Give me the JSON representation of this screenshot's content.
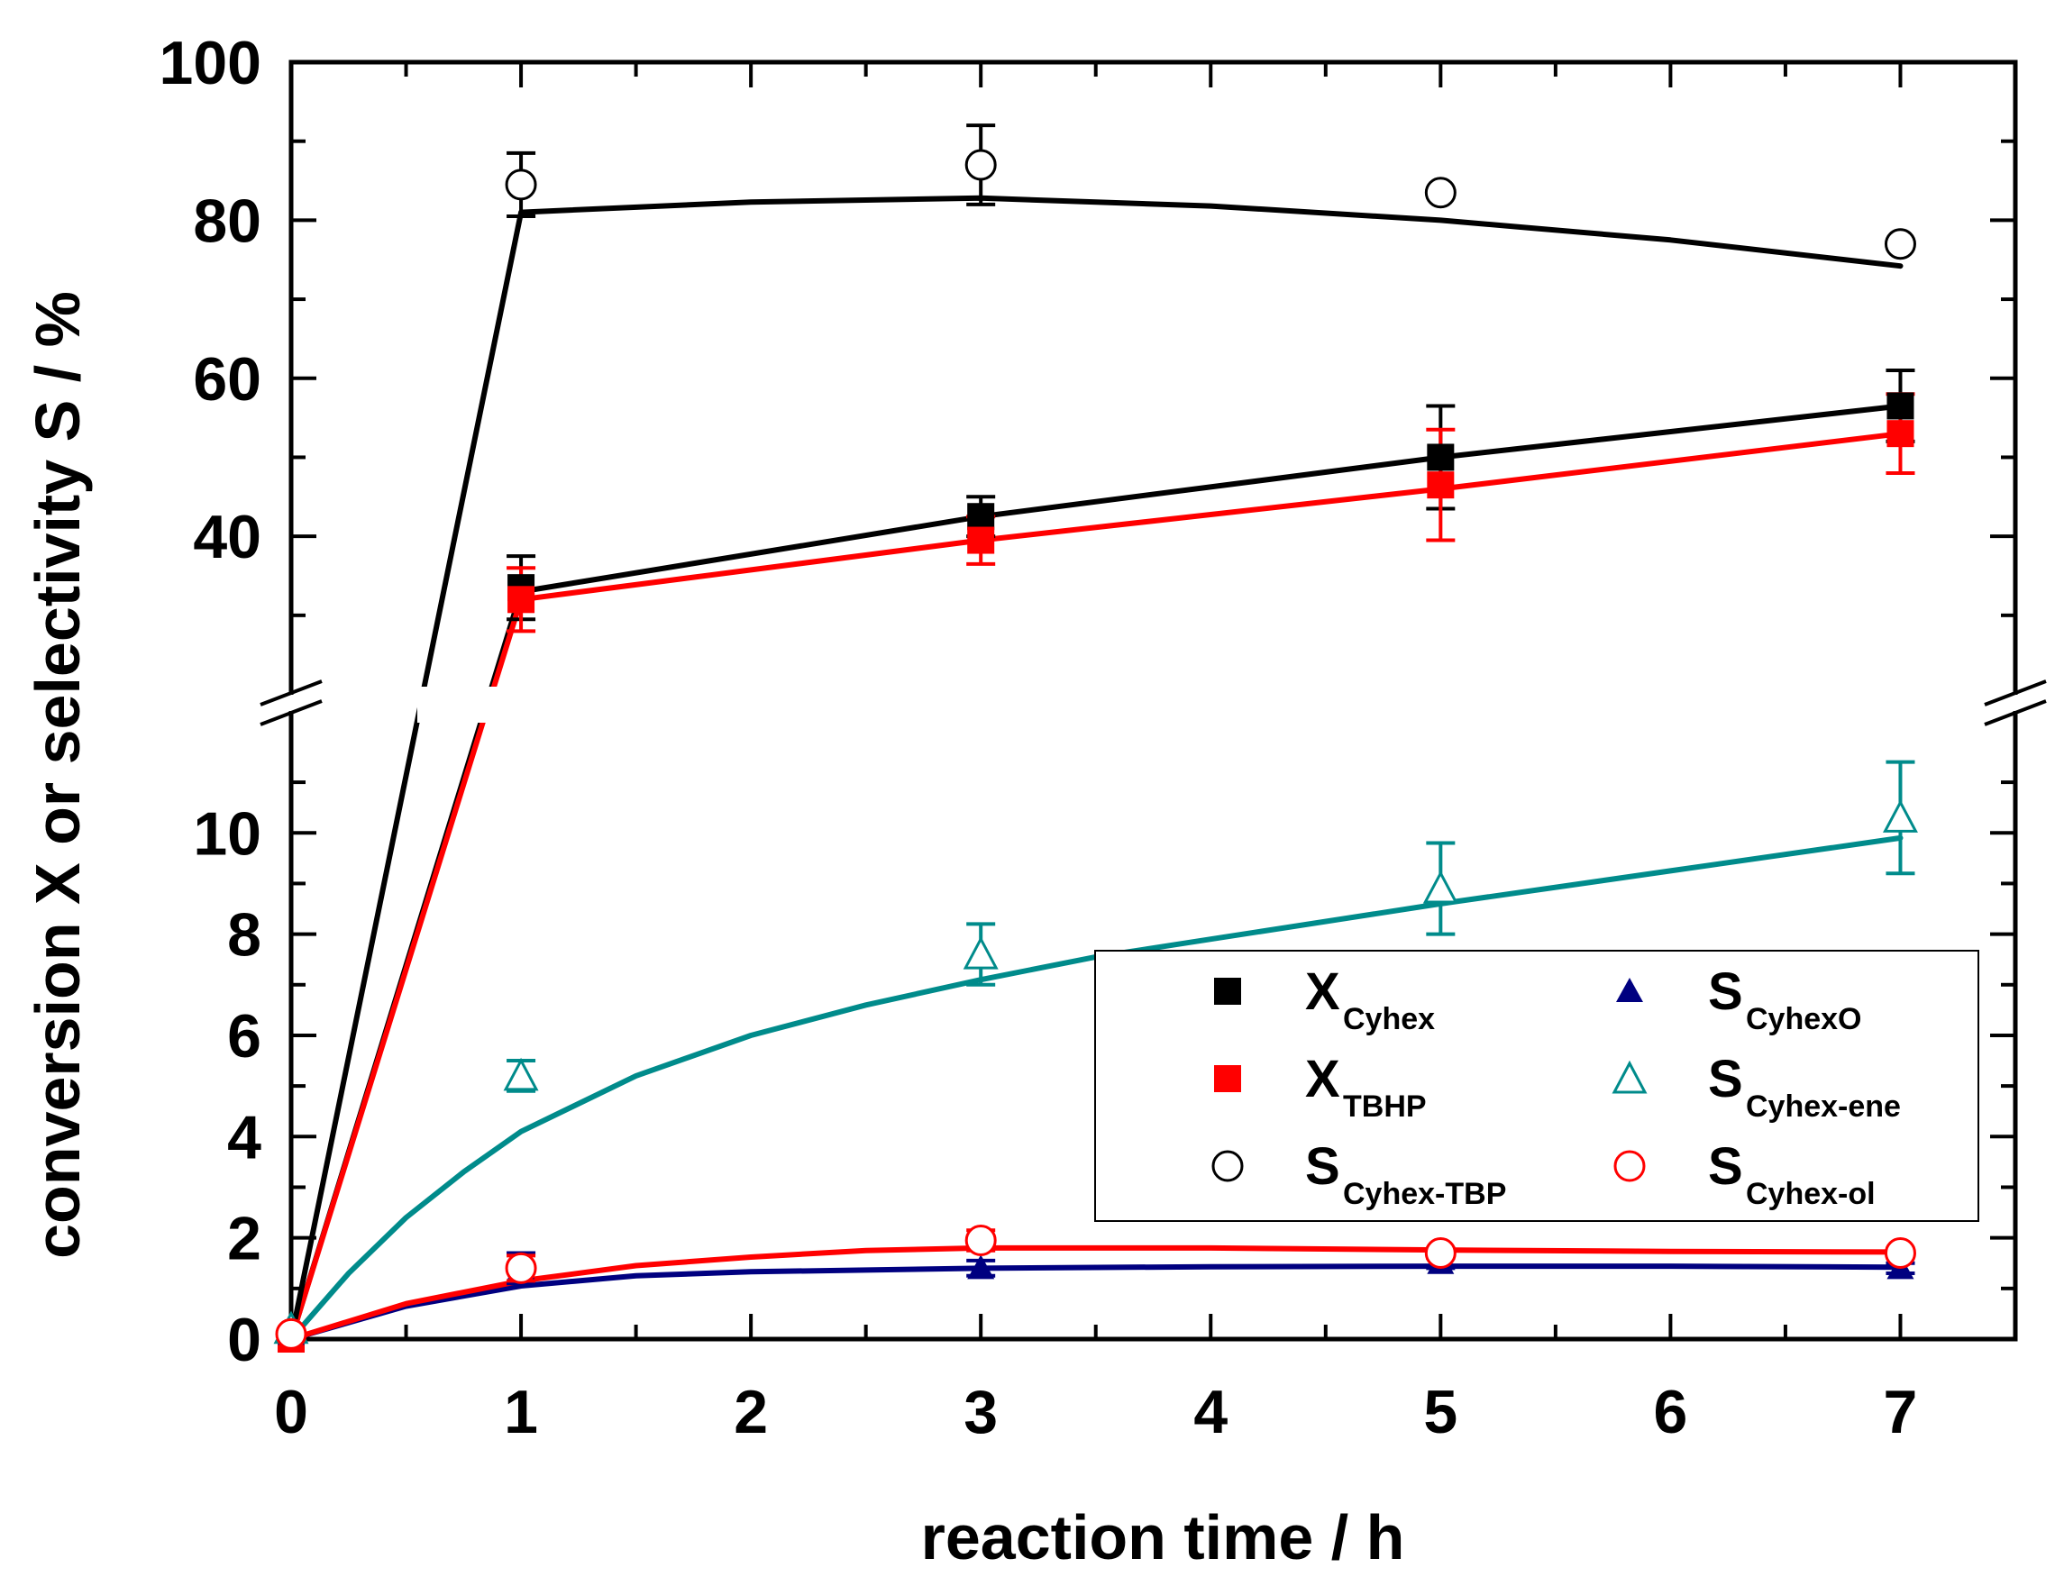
{
  "chart_data": {
    "type": "scatter",
    "title": "",
    "xlabel": "reaction time / h",
    "ylabel": "conversion X or selectivity S / %",
    "xlim": [
      0,
      7.5
    ],
    "x_ticks": [
      0,
      1,
      2,
      3,
      4,
      5,
      6,
      7
    ],
    "x_tick_labels": [
      "0",
      "1",
      "2",
      "3",
      "4",
      "5",
      "6",
      "7"
    ],
    "axis_break": {
      "lower_range": [
        0,
        11.5
      ],
      "upper_range": [
        22,
        100
      ],
      "lower_tick_labels": [
        {
          "value": 0,
          "text": "0"
        },
        {
          "value": 2,
          "text": "2"
        },
        {
          "value": 4,
          "text": "4"
        },
        {
          "value": 6,
          "text": "6"
        },
        {
          "value": 8,
          "text": "8"
        },
        {
          "value": 10,
          "text": "10"
        }
      ],
      "upper_tick_labels": [
        {
          "value": 40,
          "text": "40"
        },
        {
          "value": 60,
          "text": "60"
        },
        {
          "value": 80,
          "text": "80"
        },
        {
          "value": 100,
          "text": "100"
        }
      ]
    },
    "legend_position": "inside-right-middle",
    "series": [
      {
        "id": "x-cyhex",
        "name_main": "X",
        "name_sub": "Cyhex",
        "marker": "square-filled",
        "color": "#000000",
        "points": [
          {
            "x": 0,
            "y": 0,
            "err": 0
          },
          {
            "x": 1,
            "y": 33.5,
            "err": 4
          },
          {
            "x": 3,
            "y": 42.5,
            "err": 2.5
          },
          {
            "x": 5,
            "y": 50,
            "err": 6.5
          },
          {
            "x": 7,
            "y": 56.5,
            "err": 4.5
          }
        ],
        "fit": [
          [
            0,
            0
          ],
          [
            1,
            33
          ],
          [
            3,
            42.5
          ],
          [
            5,
            50
          ],
          [
            7,
            56.5
          ]
        ]
      },
      {
        "id": "x-tbhp",
        "name_main": "X",
        "name_sub": "TBHP",
        "marker": "square-filled",
        "color": "#ff0000",
        "points": [
          {
            "x": 0,
            "y": 0,
            "err": 0
          },
          {
            "x": 1,
            "y": 32,
            "err": 4
          },
          {
            "x": 3,
            "y": 39.5,
            "err": 3
          },
          {
            "x": 5,
            "y": 46.5,
            "err": 7
          },
          {
            "x": 7,
            "y": 53,
            "err": 5
          }
        ],
        "fit": [
          [
            0,
            0
          ],
          [
            1,
            32
          ],
          [
            3,
            39.5
          ],
          [
            5,
            46
          ],
          [
            7,
            53
          ]
        ]
      },
      {
        "id": "s-cyhex-tbp",
        "name_main": "S",
        "name_sub": "Cyhex-TBP",
        "marker": "circle-open",
        "color": "#000000",
        "points": [
          {
            "x": 1,
            "y": 84.5,
            "err": 4
          },
          {
            "x": 3,
            "y": 87,
            "err": 5
          },
          {
            "x": 5,
            "y": 83.5,
            "err": 0
          },
          {
            "x": 7,
            "y": 77,
            "err": 0
          }
        ],
        "fit": [
          [
            0,
            0
          ],
          [
            1,
            81
          ],
          [
            2,
            82.3
          ],
          [
            3,
            82.8
          ],
          [
            4,
            81.8
          ],
          [
            5,
            80
          ],
          [
            6,
            77.5
          ],
          [
            7,
            74.2
          ]
        ]
      },
      {
        "id": "s-cyhexo",
        "name_main": "S",
        "name_sub": "CyhexO",
        "marker": "triangle-filled",
        "color": "#000080",
        "points": [
          {
            "x": 0,
            "y": 0.1,
            "err": 0
          },
          {
            "x": 1,
            "y": 1.4,
            "err": 0.3
          },
          {
            "x": 3,
            "y": 1.4,
            "err": 0.15
          },
          {
            "x": 5,
            "y": 1.5,
            "err": 0.1
          },
          {
            "x": 7,
            "y": 1.4,
            "err": 0.1
          }
        ],
        "fit": [
          [
            0,
            0
          ],
          [
            0.5,
            0.65
          ],
          [
            1,
            1.05
          ],
          [
            1.5,
            1.25
          ],
          [
            2,
            1.33
          ],
          [
            3,
            1.4
          ],
          [
            4,
            1.43
          ],
          [
            5,
            1.44
          ],
          [
            6,
            1.44
          ],
          [
            7,
            1.42
          ]
        ]
      },
      {
        "id": "s-cyhex-ene",
        "name_main": "S",
        "name_sub": "Cyhex-ene",
        "marker": "triangle-open",
        "color": "#008b8b",
        "points": [
          {
            "x": 0,
            "y": 0.2,
            "err": 0
          },
          {
            "x": 1,
            "y": 5.2,
            "err": 0.3
          },
          {
            "x": 3,
            "y": 7.6,
            "err": 0.6
          },
          {
            "x": 5,
            "y": 8.9,
            "err": 0.9
          },
          {
            "x": 7,
            "y": 10.3,
            "err": 1.1
          }
        ],
        "fit": [
          [
            0,
            0
          ],
          [
            0.25,
            1.3
          ],
          [
            0.5,
            2.4
          ],
          [
            0.75,
            3.3
          ],
          [
            1,
            4.1
          ],
          [
            1.5,
            5.2
          ],
          [
            2,
            6.0
          ],
          [
            2.5,
            6.6
          ],
          [
            3,
            7.1
          ],
          [
            3.5,
            7.55
          ],
          [
            4,
            7.9
          ],
          [
            5,
            8.6
          ],
          [
            6,
            9.25
          ],
          [
            7,
            9.9
          ]
        ]
      },
      {
        "id": "s-cyhex-ol",
        "name_main": "S",
        "name_sub": "Cyhex-ol",
        "marker": "circle-open",
        "color": "#ff0000",
        "points": [
          {
            "x": 0,
            "y": 0.1,
            "err": 0
          },
          {
            "x": 1,
            "y": 1.4,
            "err": 0.25
          },
          {
            "x": 3,
            "y": 1.95,
            "err": 0.2
          },
          {
            "x": 5,
            "y": 1.7,
            "err": 0.1
          },
          {
            "x": 7,
            "y": 1.7,
            "err": 0.1
          }
        ],
        "fit": [
          [
            0,
            0
          ],
          [
            0.5,
            0.7
          ],
          [
            1,
            1.15
          ],
          [
            1.5,
            1.45
          ],
          [
            2,
            1.62
          ],
          [
            2.5,
            1.75
          ],
          [
            3,
            1.8
          ],
          [
            4,
            1.8
          ],
          [
            5,
            1.76
          ],
          [
            6,
            1.73
          ],
          [
            7,
            1.72
          ]
        ]
      }
    ]
  }
}
